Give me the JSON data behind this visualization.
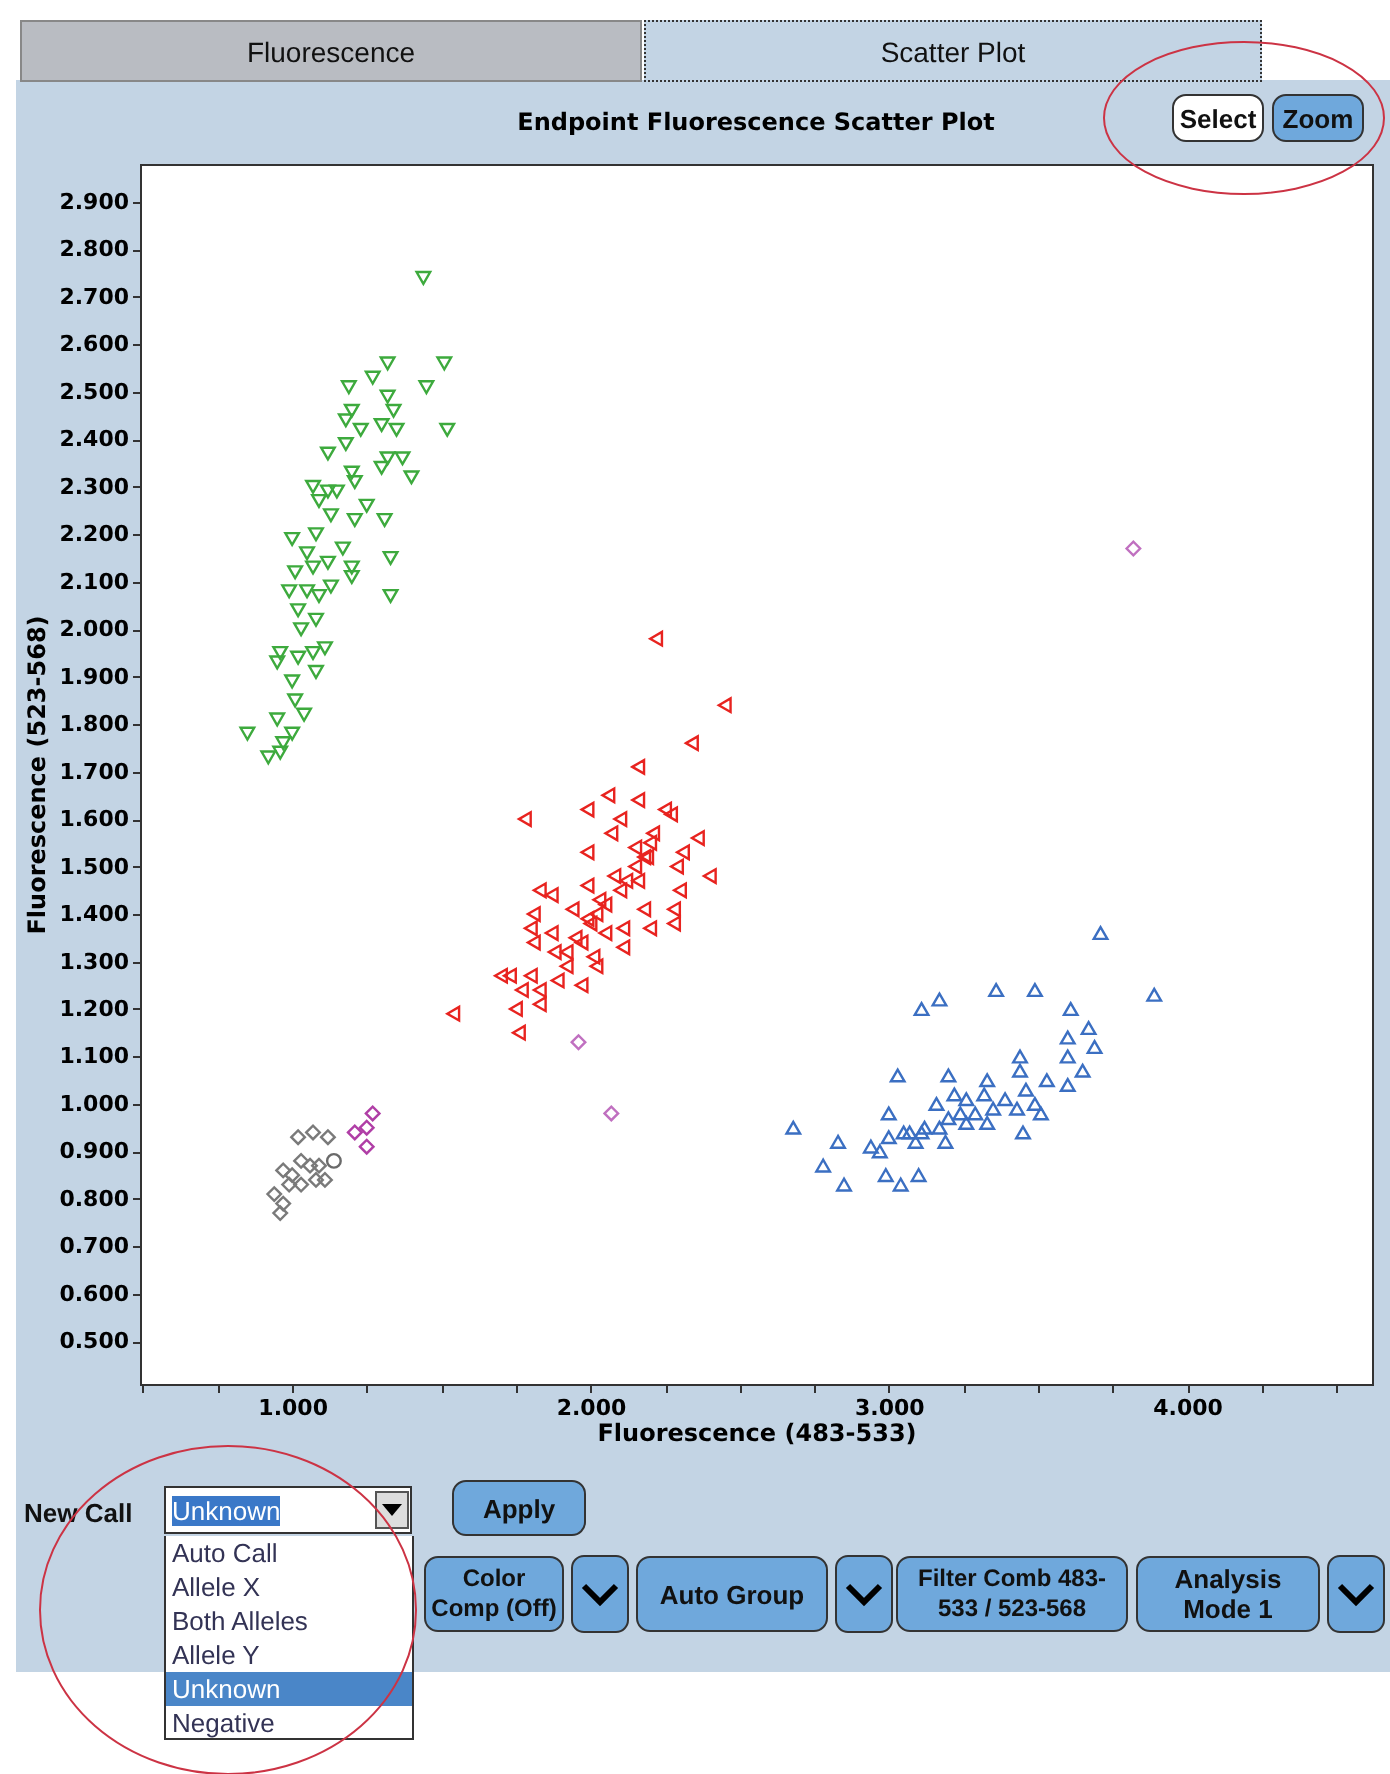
{
  "chart_data": {
    "type": "scatter",
    "title": "Endpoint Fluorescence Scatter Plot",
    "xlabel": "Fluorescence (483-533)",
    "ylabel": "Fluorescence (523-568)",
    "xlim": [
      0.49,
      4.62
    ],
    "ylim": [
      0.41,
      2.98
    ],
    "xticks": [
      {
        "value": 0.5,
        "label": null
      },
      {
        "value": 0.75,
        "label": null
      },
      {
        "value": 1,
        "label": "1.000"
      },
      {
        "value": 1.25,
        "label": null
      },
      {
        "value": 1.5,
        "label": null
      },
      {
        "value": 1.75,
        "label": null
      },
      {
        "value": 2,
        "label": "2.000"
      },
      {
        "value": 2.25,
        "label": null
      },
      {
        "value": 2.5,
        "label": null
      },
      {
        "value": 2.75,
        "label": null
      },
      {
        "value": 3,
        "label": "3.000"
      },
      {
        "value": 3.25,
        "label": null
      },
      {
        "value": 3.5,
        "label": null
      },
      {
        "value": 3.75,
        "label": null
      },
      {
        "value": 4,
        "label": "4.000"
      },
      {
        "value": 4.25,
        "label": null
      },
      {
        "value": 4.5,
        "label": null
      }
    ],
    "yticks": [
      {
        "value": 0.5,
        "label": "0.500"
      },
      {
        "value": 0.6,
        "label": "0.600"
      },
      {
        "value": 0.7,
        "label": "0.700"
      },
      {
        "value": 0.8,
        "label": "0.800"
      },
      {
        "value": 0.9,
        "label": "0.900"
      },
      {
        "value": 1.0,
        "label": "1.000"
      },
      {
        "value": 1.1,
        "label": "1.100"
      },
      {
        "value": 1.2,
        "label": "1.200"
      },
      {
        "value": 1.3,
        "label": "1.300"
      },
      {
        "value": 1.4,
        "label": "1.400"
      },
      {
        "value": 1.5,
        "label": "1.500"
      },
      {
        "value": 1.6,
        "label": "1.600"
      },
      {
        "value": 1.7,
        "label": "1.700"
      },
      {
        "value": 1.8,
        "label": "1.800"
      },
      {
        "value": 1.9,
        "label": "1.900"
      },
      {
        "value": 2.0,
        "label": "2.000"
      },
      {
        "value": 2.1,
        "label": "2.100"
      },
      {
        "value": 2.2,
        "label": "2.200"
      },
      {
        "value": 2.3,
        "label": "2.300"
      },
      {
        "value": 2.4,
        "label": "2.400"
      },
      {
        "value": 2.5,
        "label": "2.500"
      },
      {
        "value": 2.6,
        "label": "2.600"
      },
      {
        "value": 2.7,
        "label": "2.700"
      },
      {
        "value": 2.8,
        "label": "2.800"
      },
      {
        "value": 2.9,
        "label": "2.900"
      }
    ],
    "series": [
      {
        "color": "#3daa3d",
        "marker": "triangle-down",
        "x": [
          1.44,
          1.32,
          1.51,
          1.27,
          1.19,
          1.45,
          1.32,
          1.2,
          1.34,
          1.18,
          1.3,
          1.35,
          1.52,
          1.23,
          1.12,
          1.18,
          1.32,
          1.37,
          1.3,
          1.4,
          1.2,
          1.07,
          1.12,
          1.15,
          1.21,
          1.09,
          1.25,
          1.21,
          1.31,
          1.13,
          1.08,
          1.0,
          1.17,
          1.33,
          1.05,
          1.12,
          1.2,
          1.01,
          1.07,
          1.13,
          1.2,
          0.99,
          1.05,
          1.09,
          1.33,
          1.02,
          1.08,
          1.03,
          1.11,
          0.96,
          1.07,
          1.02,
          0.95,
          1.08,
          1.0,
          1.01,
          1.04,
          0.95,
          0.85,
          1.0,
          0.97,
          0.96,
          0.92
        ],
        "values": [
          2.74,
          2.56,
          2.56,
          2.53,
          2.51,
          2.51,
          2.49,
          2.46,
          2.46,
          2.44,
          2.43,
          2.42,
          2.42,
          2.42,
          2.37,
          2.39,
          2.36,
          2.36,
          2.34,
          2.32,
          2.33,
          2.3,
          2.29,
          2.29,
          2.31,
          2.27,
          2.26,
          2.23,
          2.23,
          2.24,
          2.2,
          2.19,
          2.17,
          2.15,
          2.16,
          2.14,
          2.13,
          2.12,
          2.13,
          2.09,
          2.11,
          2.08,
          2.08,
          2.07,
          2.07,
          2.04,
          2.02,
          2.0,
          1.96,
          1.95,
          1.95,
          1.94,
          1.93,
          1.91,
          1.89,
          1.85,
          1.82,
          1.81,
          1.78,
          1.78,
          1.76,
          1.74,
          1.73
        ]
      },
      {
        "color": "#e8231f",
        "marker": "triangle-left",
        "x": [
          2.22,
          2.45,
          2.34,
          2.16,
          2.06,
          2.16,
          1.99,
          1.78,
          2.25,
          2.27,
          2.1,
          2.21,
          2.36,
          2.07,
          2.15,
          2.31,
          1.99,
          2.19,
          2.29,
          2.4,
          2.08,
          2.16,
          2.3,
          1.99,
          1.83,
          1.87,
          2.03,
          2.18,
          2.28,
          1.94,
          1.81,
          1.99,
          2.11,
          2.28,
          2.2,
          1.87,
          1.8,
          2.05,
          1.97,
          1.81,
          2.11,
          1.88,
          2.01,
          1.92,
          2.02,
          1.7,
          1.73,
          1.8,
          1.89,
          1.97,
          1.77,
          1.83,
          1.83,
          1.75,
          1.54,
          1.76,
          2.1,
          2.15,
          2.05,
          2.0,
          1.95,
          2.2,
          2.12,
          2.18,
          1.92,
          2.02
        ],
        "values": [
          1.98,
          1.84,
          1.76,
          1.71,
          1.65,
          1.64,
          1.62,
          1.6,
          1.62,
          1.61,
          1.6,
          1.57,
          1.56,
          1.57,
          1.54,
          1.53,
          1.53,
          1.52,
          1.5,
          1.48,
          1.48,
          1.47,
          1.45,
          1.46,
          1.45,
          1.44,
          1.43,
          1.41,
          1.41,
          1.41,
          1.4,
          1.39,
          1.37,
          1.38,
          1.37,
          1.36,
          1.37,
          1.36,
          1.34,
          1.34,
          1.33,
          1.32,
          1.31,
          1.29,
          1.29,
          1.27,
          1.27,
          1.27,
          1.26,
          1.25,
          1.24,
          1.24,
          1.21,
          1.2,
          1.19,
          1.15,
          1.45,
          1.5,
          1.42,
          1.38,
          1.35,
          1.55,
          1.47,
          1.52,
          1.32,
          1.4
        ]
      },
      {
        "color": "#3b6fc2",
        "marker": "triangle-up",
        "x": [
          3.71,
          3.89,
          3.36,
          3.49,
          3.11,
          3.17,
          3.61,
          3.67,
          3.6,
          3.69,
          3.6,
          3.44,
          3.65,
          3.44,
          3.03,
          3.2,
          3.33,
          3.53,
          3.6,
          3.46,
          3.16,
          3.22,
          3.26,
          3.32,
          3.39,
          3.49,
          3.24,
          3.29,
          3.35,
          3.51,
          3.43,
          3.0,
          3.2,
          3.26,
          3.33,
          3.12,
          3.17,
          3.07,
          3.11,
          3.0,
          3.05,
          2.68,
          2.83,
          2.94,
          2.97,
          3.09,
          3.19,
          3.45,
          2.78,
          2.99,
          2.85,
          3.04,
          3.1
        ],
        "values": [
          1.36,
          1.23,
          1.24,
          1.24,
          1.2,
          1.22,
          1.2,
          1.16,
          1.14,
          1.12,
          1.1,
          1.1,
          1.07,
          1.07,
          1.06,
          1.06,
          1.05,
          1.05,
          1.04,
          1.03,
          1.0,
          1.02,
          1.01,
          1.02,
          1.01,
          1.0,
          0.98,
          0.98,
          0.99,
          0.98,
          0.99,
          0.98,
          0.97,
          0.96,
          0.96,
          0.95,
          0.95,
          0.94,
          0.94,
          0.93,
          0.94,
          0.95,
          0.92,
          0.91,
          0.9,
          0.92,
          0.92,
          0.94,
          0.87,
          0.85,
          0.83,
          0.83,
          0.85
        ]
      },
      {
        "color": "#7a7a7a",
        "marker": "diamond",
        "x": [
          1.02,
          1.07,
          1.12,
          0.97,
          1.03,
          1.0,
          1.06,
          1.09,
          0.99,
          1.03,
          1.08,
          1.11,
          0.94,
          0.97,
          0.96
        ],
        "values": [
          0.93,
          0.94,
          0.93,
          0.86,
          0.88,
          0.85,
          0.87,
          0.87,
          0.83,
          0.83,
          0.84,
          0.84,
          0.81,
          0.79,
          0.77
        ]
      },
      {
        "color": "#6a6a6a",
        "marker": "circle",
        "x": [
          1.14
        ],
        "values": [
          0.88
        ]
      },
      {
        "color": "#b03ea6",
        "marker": "diamond",
        "x": [
          1.27,
          1.21,
          1.25,
          1.25
        ],
        "values": [
          0.98,
          0.94,
          0.95,
          0.91
        ]
      },
      {
        "color": "#c070c0",
        "marker": "diamond",
        "x": [
          3.82,
          1.96,
          2.07
        ],
        "values": [
          2.17,
          1.13,
          0.98
        ]
      }
    ],
    "annotations": [
      "Fluorescence",
      "Scatter Plot",
      "Select",
      "Zoom",
      "New Call",
      "Unknown",
      "Apply",
      "Auto Call",
      "Allele X",
      "Both Alleles",
      "Allele Y",
      "Unknown",
      "Negative",
      "Color Comp (Off)",
      "Auto Group",
      "Filter Comb 483-533 / 523-568",
      "Analysis Mode 1"
    ]
  }
}
